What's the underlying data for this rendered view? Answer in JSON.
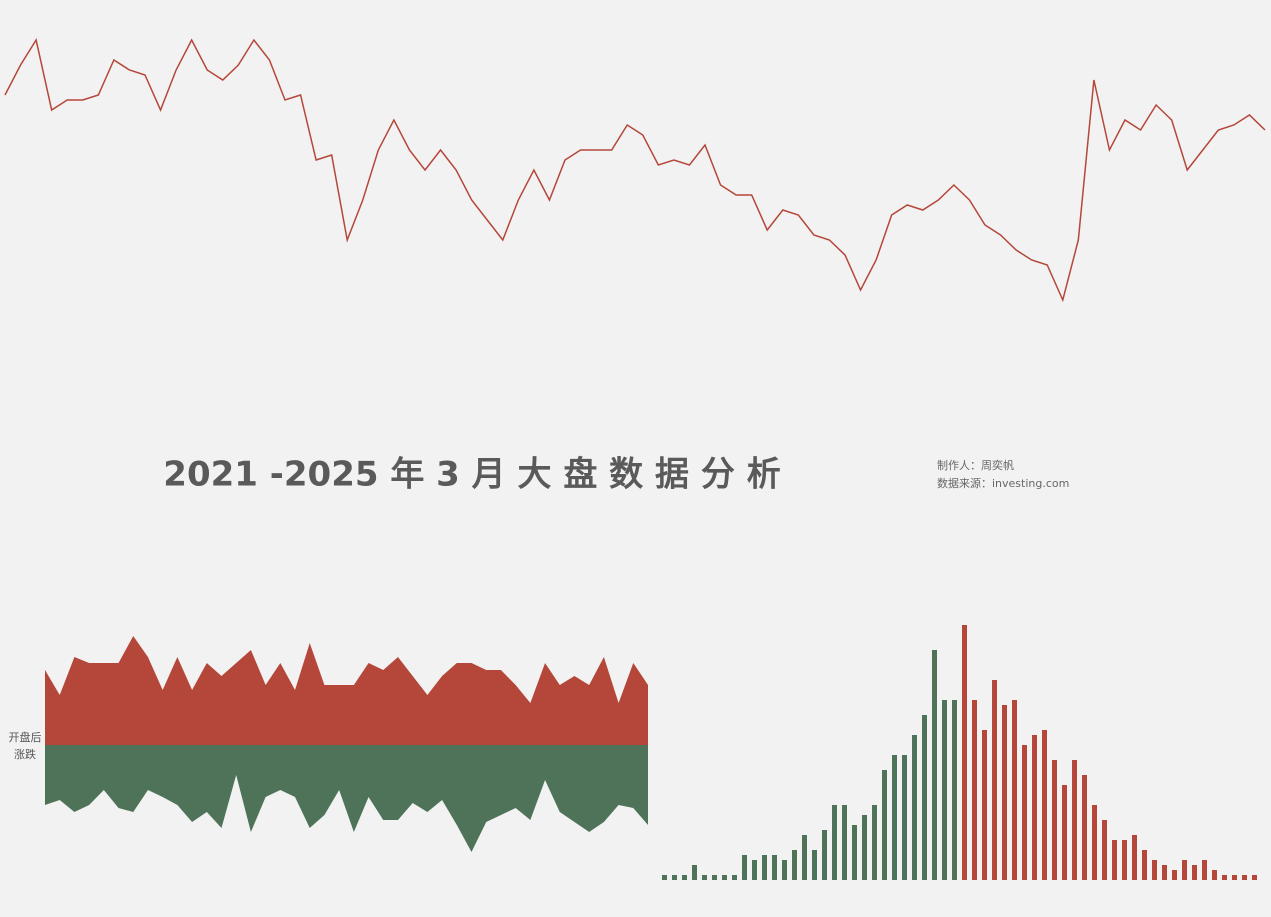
{
  "title": "2021 -2025 年 3 月 大 盘 数 据 分 析",
  "author": "制作人：周奕帆",
  "source": "数据来源：investing.com",
  "chart_data": [
    {
      "type": "line",
      "color": "#b5473a",
      "values": [
        235,
        265,
        290,
        220,
        230,
        230,
        235,
        270,
        260,
        255,
        220,
        260,
        290,
        260,
        250,
        265,
        290,
        270,
        230,
        235,
        170,
        175,
        90,
        130,
        180,
        210,
        180,
        160,
        180,
        160,
        130,
        110,
        90,
        130,
        160,
        130,
        170,
        180,
        180,
        180,
        205,
        195,
        165,
        170,
        165,
        185,
        145,
        135,
        135,
        100,
        120,
        115,
        95,
        90,
        75,
        40,
        70,
        115,
        125,
        120,
        130,
        145,
        130,
        105,
        95,
        80,
        70,
        65,
        30,
        90,
        250,
        180,
        210,
        200,
        225,
        210,
        160,
        180,
        200,
        205,
        215,
        200
      ]
    },
    {
      "type": "diverging-area",
      "label": [
        "开盘后",
        "涨跌"
      ],
      "series": [
        {
          "color": "#b5473a",
          "values": [
            75,
            50,
            88,
            82,
            82,
            82,
            109,
            88,
            55,
            88,
            55,
            82,
            69,
            82,
            95,
            60,
            82,
            55,
            102,
            60,
            60,
            60,
            82,
            75,
            88,
            69,
            50,
            69,
            82,
            82,
            75,
            75,
            60,
            42,
            82,
            60,
            69,
            60,
            88,
            42,
            82,
            60
          ]
        },
        {
          "color": "#4e7358",
          "values": [
            60,
            55,
            67,
            60,
            45,
            63,
            67,
            45,
            52,
            60,
            77,
            67,
            83,
            30,
            87,
            52,
            45,
            52,
            83,
            70,
            45,
            87,
            52,
            75,
            75,
            58,
            67,
            55,
            80,
            107,
            77,
            70,
            63,
            75,
            35,
            67,
            77,
            87,
            77,
            60,
            63,
            80
          ]
        }
      ]
    },
    {
      "type": "bar",
      "series": [
        {
          "color": "#4e7358",
          "values": [
            5,
            5,
            5,
            15,
            5,
            5,
            5,
            5,
            25,
            20,
            25,
            25,
            20,
            30,
            45,
            30,
            50,
            75,
            75,
            55,
            65,
            75,
            110,
            125,
            125,
            145,
            165,
            230,
            180,
            180
          ]
        },
        {
          "color": "#b5473a",
          "values": [
            255,
            180,
            150,
            200,
            175,
            180,
            135,
            145,
            150,
            120,
            95,
            120,
            105,
            75,
            60,
            40,
            40,
            45,
            30,
            20,
            15,
            10,
            20,
            15,
            20,
            10,
            5,
            5,
            5,
            5
          ]
        }
      ]
    }
  ]
}
